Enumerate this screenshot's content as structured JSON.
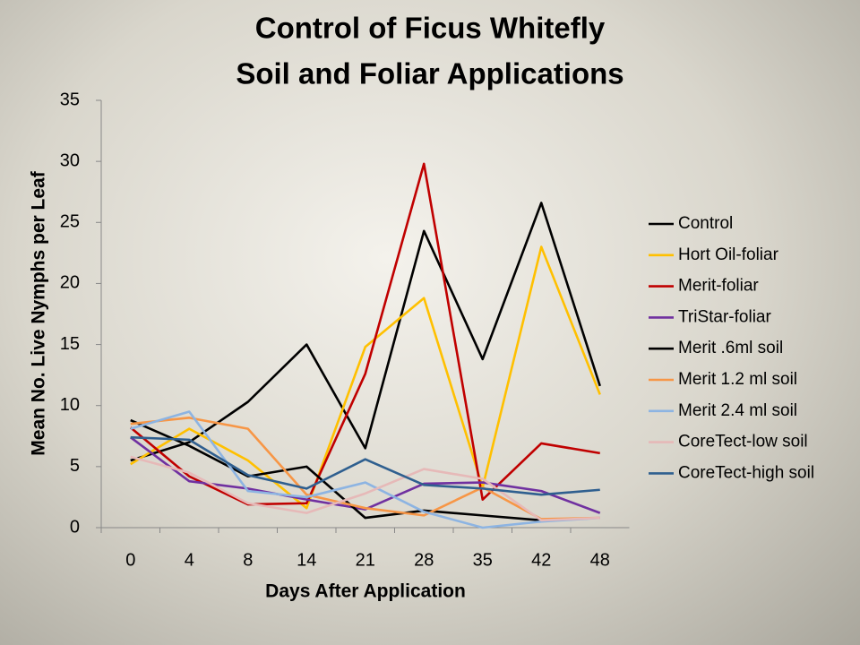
{
  "chart_data": {
    "type": "line",
    "title": "Control of Ficus Whitefly",
    "subtitle": "Soil and Foliar Applications",
    "x_label": "Days After Application",
    "y_label": "Mean No. Live Nymphs per Leaf",
    "categories": [
      "0",
      "4",
      "8",
      "14",
      "21",
      "28",
      "35",
      "42",
      "48"
    ],
    "ylim": [
      0,
      35
    ],
    "yticks": [
      0,
      5,
      10,
      15,
      20,
      25,
      30,
      35
    ],
    "legend": "right",
    "series": [
      {
        "name": "Control",
        "color": "#000000",
        "values": [
          5.5,
          7,
          10.3,
          15,
          6.5,
          24.3,
          13.8,
          26.6,
          11.6
        ]
      },
      {
        "name": "Hort Oil-foliar",
        "color": "#ffc000",
        "values": [
          5.2,
          8.1,
          5.5,
          1.6,
          14.8,
          18.8,
          3.3,
          23,
          10.9
        ]
      },
      {
        "name": "Merit-foliar",
        "color": "#c00000",
        "values": [
          8.2,
          4.2,
          1.9,
          2.0,
          12.6,
          29.8,
          2.3,
          6.9,
          6.1
        ]
      },
      {
        "name": "TriStar-foliar",
        "color": "#7030a0",
        "values": [
          7.4,
          3.8,
          3.2,
          2.3,
          1.5,
          3.6,
          3.7,
          3.0,
          1.2
        ]
      },
      {
        "name": "Merit .6ml soil",
        "color": "#000000",
        "values": [
          8.8,
          6.7,
          4.2,
          5.0,
          0.8,
          1.4,
          1.0,
          0.6,
          null
        ]
      },
      {
        "name": "Merit 1.2 ml soil",
        "color": "#f79646",
        "values": [
          8.5,
          9.0,
          8.1,
          2.7,
          1.6,
          1.0,
          3.3,
          0.7,
          0.8
        ]
      },
      {
        "name": "Merit 2.4 ml soil",
        "color": "#8db4e2",
        "values": [
          8.1,
          9.5,
          3.0,
          2.5,
          3.7,
          1.3,
          0.0,
          0.5,
          0.8
        ]
      },
      {
        "name": "CoreTect-low soil",
        "color": "#e6b9b8",
        "values": [
          5.8,
          4.5,
          2.0,
          1.2,
          2.8,
          4.8,
          4.0,
          0.6,
          0.8
        ]
      },
      {
        "name": "CoreTect-high soil",
        "color": "#2f5f8f",
        "values": [
          7.4,
          7.2,
          4.3,
          3.2,
          5.6,
          3.5,
          3.2,
          2.7,
          3.1
        ]
      }
    ]
  }
}
